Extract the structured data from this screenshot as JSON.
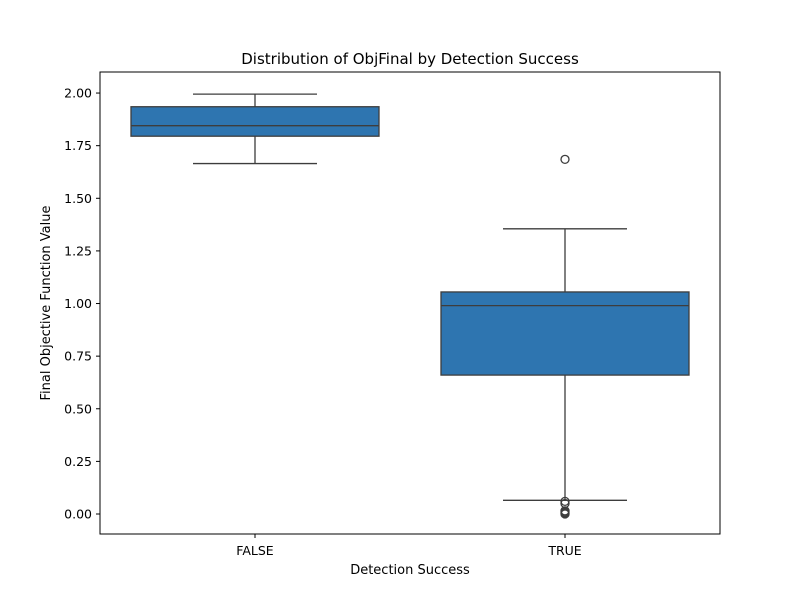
{
  "chart_data": {
    "type": "boxplot",
    "title": "Distribution of ObjFinal by Detection Success",
    "xlabel": "Detection Success",
    "ylabel": "Final Objective Function Value",
    "categories": [
      "FALSE",
      "TRUE"
    ],
    "ylim": [
      -0.095,
      2.1
    ],
    "yticks": [
      0.0,
      0.25,
      0.5,
      0.75,
      1.0,
      1.25,
      1.5,
      1.75,
      2.0
    ],
    "ytick_labels": [
      "0.00",
      "0.25",
      "0.50",
      "0.75",
      "1.00",
      "1.25",
      "1.50",
      "1.75",
      "2.00"
    ],
    "grid": false,
    "box_color": "#2e75b0",
    "line_color": "#3d3d3d",
    "boxes": [
      {
        "category": "FALSE",
        "whisker_low": 1.665,
        "q1": 1.795,
        "median": 1.845,
        "q3": 1.935,
        "whisker_high": 1.995,
        "outliers": []
      },
      {
        "category": "TRUE",
        "whisker_low": 0.065,
        "q1": 0.66,
        "median": 0.99,
        "q3": 1.055,
        "whisker_high": 1.355,
        "outliers": [
          1.685,
          0.06,
          0.05,
          0.015,
          0.01,
          0.005,
          0.0
        ]
      }
    ]
  }
}
